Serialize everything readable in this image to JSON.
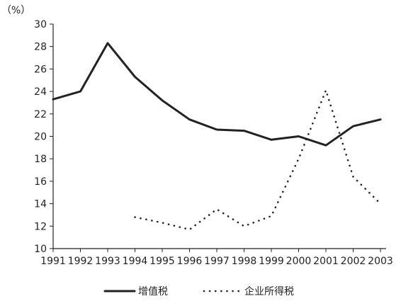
{
  "chart_data": {
    "type": "line",
    "ylabel": "（%）",
    "xlabel": "",
    "ylim": [
      10,
      30
    ],
    "yticks": [
      10,
      12,
      14,
      16,
      18,
      20,
      22,
      24,
      26,
      28,
      30
    ],
    "xticks": [
      "1991",
      "1992",
      "1993",
      "1994",
      "1995",
      "1996",
      "1997",
      "1998",
      "1999",
      "2000",
      "2001",
      "2002",
      "2003"
    ],
    "grid": false,
    "legend_position": "bottom",
    "series": [
      {
        "name": "增值税",
        "style": "solid",
        "color": "#222222",
        "points": [
          {
            "x": 1991,
            "y": 23.3
          },
          {
            "x": 1992,
            "y": 24.0
          },
          {
            "x": 1993,
            "y": 28.3
          },
          {
            "x": 1994,
            "y": 25.3
          },
          {
            "x": 1995,
            "y": 23.2
          },
          {
            "x": 1996,
            "y": 21.5
          },
          {
            "x": 1997,
            "y": 20.6
          },
          {
            "x": 1998,
            "y": 20.5
          },
          {
            "x": 1999,
            "y": 19.7
          },
          {
            "x": 2000,
            "y": 20.0
          },
          {
            "x": 2001,
            "y": 19.2
          },
          {
            "x": 2002,
            "y": 20.9
          },
          {
            "x": 2003,
            "y": 21.5
          }
        ]
      },
      {
        "name": "企业所得税",
        "style": "dotted",
        "color": "#222222",
        "points": [
          {
            "x": 1994,
            "y": 12.8
          },
          {
            "x": 1995,
            "y": 12.3
          },
          {
            "x": 1996,
            "y": 11.7
          },
          {
            "x": 1997,
            "y": 13.5
          },
          {
            "x": 1998,
            "y": 12.0
          },
          {
            "x": 1999,
            "y": 12.9
          },
          {
            "x": 2000,
            "y": 18.0
          },
          {
            "x": 2001,
            "y": 24.1
          },
          {
            "x": 2002,
            "y": 16.4
          },
          {
            "x": 2003,
            "y": 14.0
          }
        ]
      }
    ]
  }
}
